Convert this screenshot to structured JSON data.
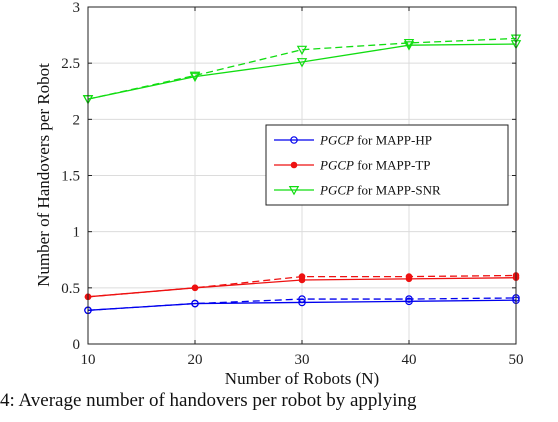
{
  "chart_data": {
    "type": "line",
    "xlabel": "Number of Robots (N)",
    "ylabel": "Number of Handovers per Robot",
    "x": [
      10,
      20,
      30,
      40,
      50
    ],
    "xlim": [
      10,
      50
    ],
    "ylim": [
      0,
      3
    ],
    "xticks": [
      "10",
      "20",
      "30",
      "40",
      "50"
    ],
    "yticks": [
      "0",
      "0.5",
      "1",
      "1.5",
      "2",
      "2.5",
      "3"
    ],
    "grid": true,
    "legend_position": "right",
    "series": [
      {
        "name": "PGCP for MAPP-HP",
        "color": "#0000ee",
        "marker": "circle",
        "style": "solid",
        "values": [
          0.3,
          0.36,
          0.37,
          0.38,
          0.39
        ]
      },
      {
        "name": "",
        "color": "#0000ee",
        "marker": "circle",
        "style": "dashed",
        "values": [
          0.3,
          0.36,
          0.4,
          0.4,
          0.41
        ]
      },
      {
        "name": "PGCP for MAPP-TP",
        "color": "#ee1111",
        "marker": "star",
        "style": "solid",
        "values": [
          0.42,
          0.5,
          0.57,
          0.58,
          0.59
        ]
      },
      {
        "name": "",
        "color": "#ee1111",
        "marker": "star",
        "style": "dashed",
        "values": [
          0.42,
          0.5,
          0.6,
          0.6,
          0.61
        ]
      },
      {
        "name": "PGCP for MAPP-SNR",
        "color": "#11dd11",
        "marker": "triangle-down",
        "style": "solid",
        "values": [
          2.18,
          2.38,
          2.51,
          2.66,
          2.67
        ]
      },
      {
        "name": "",
        "color": "#11dd11",
        "marker": "triangle-down",
        "style": "dashed",
        "values": [
          2.18,
          2.39,
          2.62,
          2.68,
          2.72
        ]
      }
    ],
    "legend": [
      {
        "italic": "PGCP",
        "rest": " for MAPP-HP",
        "color": "#0000ee",
        "marker": "circle"
      },
      {
        "italic": "PGCP",
        "rest": " for MAPP-TP",
        "color": "#ee1111",
        "marker": "star"
      },
      {
        "italic": "PGCP",
        "rest": " for MAPP-SNR",
        "color": "#11dd11",
        "marker": "triangle-down"
      }
    ]
  },
  "caption": "4: Average number of handovers per robot by applying"
}
